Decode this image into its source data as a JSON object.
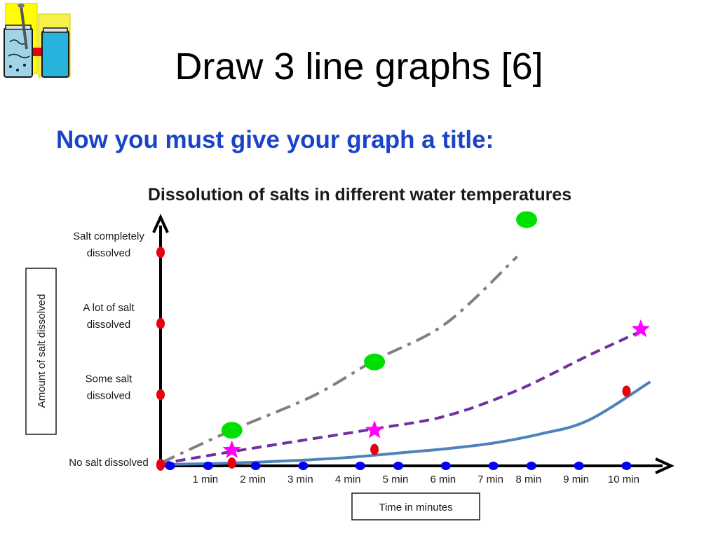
{
  "slide": {
    "title": "Draw 3 line graphs [6]",
    "subtitle": "Now you must give your graph a title:"
  },
  "chart_data": {
    "type": "line",
    "title": "Dissolution of salts in different water temperatures",
    "xlabel": "Time in minutes",
    "ylabel": "Amount of salt dissolved",
    "categories": [
      "1 min",
      "2 min",
      "3 min",
      "4 min",
      "5 min",
      "6 min",
      "7 min",
      "8 min",
      "9 min",
      "10 min"
    ],
    "y_levels": [
      {
        "value": 0,
        "lines": [
          "No salt dissolved"
        ]
      },
      {
        "value": 1,
        "lines": [
          "Some salt",
          "dissolved"
        ]
      },
      {
        "value": 2,
        "lines": [
          "A lot of salt",
          "dissolved"
        ]
      },
      {
        "value": 3,
        "lines": [
          "Salt completely",
          "dissolved"
        ]
      }
    ],
    "ylim": [
      0,
      3.3
    ],
    "xlim": [
      0,
      10.7
    ],
    "grid": false,
    "series": [
      {
        "style": "solid",
        "color": "#4f81bd",
        "marker": "red-dot",
        "points": [
          [
            0,
            0.02
          ],
          [
            1,
            0.03
          ],
          [
            2,
            0.05
          ],
          [
            3,
            0.08
          ],
          [
            4,
            0.12
          ],
          [
            5,
            0.18
          ],
          [
            6,
            0.24
          ],
          [
            7,
            0.32
          ],
          [
            8,
            0.45
          ],
          [
            9,
            0.64
          ],
          [
            10.3,
            1.18
          ]
        ],
        "markers": [
          [
            0,
            0.02
          ],
          [
            1.5,
            0.04
          ],
          [
            4.5,
            0.23
          ],
          [
            9.8,
            1.05
          ]
        ]
      },
      {
        "style": "dashed",
        "color": "#7030a0",
        "marker": "magenta-star",
        "points": [
          [
            0,
            0.03
          ],
          [
            1.5,
            0.2
          ],
          [
            3,
            0.36
          ],
          [
            4.5,
            0.52
          ],
          [
            6,
            0.7
          ],
          [
            7.5,
            1.06
          ],
          [
            9,
            1.55
          ],
          [
            10.2,
            1.92
          ]
        ],
        "markers": [
          [
            1.5,
            0.22
          ],
          [
            4.5,
            0.5
          ],
          [
            10.1,
            1.92
          ]
        ]
      },
      {
        "style": "dashdot",
        "color": "#808080",
        "marker": "green-dot",
        "points": [
          [
            0,
            0.04
          ],
          [
            1.5,
            0.5
          ],
          [
            3.2,
            0.98
          ],
          [
            4.5,
            1.48
          ],
          [
            6,
            2.0
          ],
          [
            7.5,
            2.94
          ]
        ],
        "markers": [
          [
            1.5,
            0.5
          ],
          [
            4.5,
            1.46
          ],
          [
            7.7,
            3.46
          ]
        ]
      }
    ],
    "axis_markers": [
      0.2,
      1.0,
      2.0,
      3.0,
      4.2,
      5.0,
      6.0,
      7.0,
      7.8,
      8.8,
      9.8
    ]
  },
  "colors": {
    "subtitle": "#1a44c8",
    "red_marker": "#e8000e",
    "blue_marker": "#0000ff",
    "star": "#ff00ff",
    "green_marker": "#00e000"
  },
  "icons": [
    "beaker-clipart-icon"
  ]
}
